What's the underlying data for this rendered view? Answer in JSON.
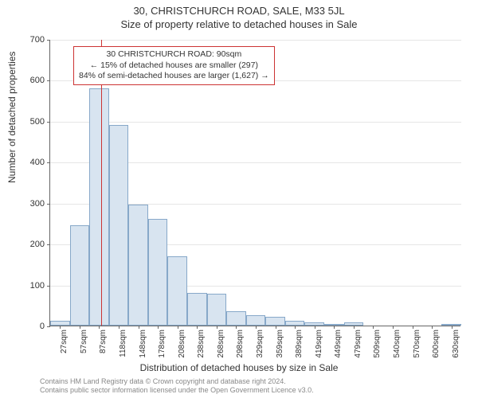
{
  "title": "30, CHRISTCHURCH ROAD, SALE, M33 5JL",
  "subtitle": "Size of property relative to detached houses in Sale",
  "ylabel": "Number of detached properties",
  "xlabel": "Distribution of detached houses by size in Sale",
  "chart": {
    "type": "histogram",
    "ylim": [
      0,
      700
    ],
    "ytick_step": 100,
    "background_color": "#ffffff",
    "grid_color": "#e6e6e6",
    "axis_color": "#666666",
    "bar_fill": "#d8e4f0",
    "bar_border": "#87a8c9",
    "indicator_color": "#cc3333",
    "indicator_value": 90,
    "xunit": "sqm",
    "xtick_labels": [
      "27sqm",
      "57sqm",
      "87sqm",
      "118sqm",
      "148sqm",
      "178sqm",
      "208sqm",
      "238sqm",
      "268sqm",
      "298sqm",
      "329sqm",
      "359sqm",
      "389sqm",
      "419sqm",
      "449sqm",
      "479sqm",
      "509sqm",
      "540sqm",
      "570sqm",
      "600sqm",
      "630sqm"
    ],
    "values": [
      12,
      245,
      580,
      490,
      295,
      260,
      170,
      80,
      78,
      35,
      25,
      22,
      12,
      8,
      3,
      8,
      0,
      0,
      0,
      0,
      2
    ]
  },
  "info_box": {
    "line1": "30 CHRISTCHURCH ROAD: 90sqm",
    "line2": "← 15% of detached houses are smaller (297)",
    "line3": "84% of semi-detached houses are larger (1,627) →"
  },
  "footer": {
    "line1": "Contains HM Land Registry data © Crown copyright and database right 2024.",
    "line2": "Contains public sector information licensed under the Open Government Licence v3.0."
  },
  "fonts": {
    "title_size": 13,
    "label_size": 12,
    "tick_size": 11,
    "xtick_size": 10,
    "info_size": 10.5,
    "footer_size": 9
  }
}
